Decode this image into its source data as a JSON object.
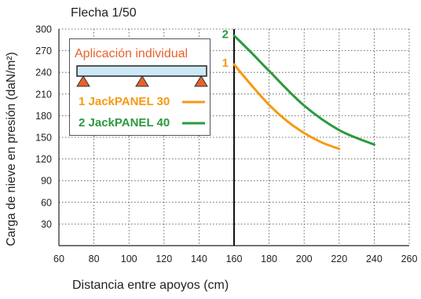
{
  "page": {
    "deflection_label": "Flecha 1/50",
    "legend_title": "Aplicación individual"
  },
  "chart_data": {
    "type": "line",
    "title": "Flecha 1/50",
    "xlabel": "Distancia entre apoyos (cm)",
    "ylabel": "Carga de nieve en presión  (daN/m²)",
    "xlim": [
      60,
      260
    ],
    "ylim": [
      0,
      300
    ],
    "xticks": [
      60,
      80,
      100,
      120,
      140,
      160,
      180,
      200,
      220,
      240,
      260
    ],
    "yticks": [
      30,
      60,
      90,
      120,
      150,
      180,
      210,
      240,
      270,
      300
    ],
    "grid": true,
    "marker_line_x": 160,
    "series": [
      {
        "name": "1 JackPANEL 30",
        "label": "1",
        "color": "#f59a12",
        "x": [
          160,
          170,
          180,
          190,
          200,
          210,
          220
        ],
        "y": [
          251,
          222,
          195,
          173,
          156,
          143,
          134
        ]
      },
      {
        "name": "2 JackPANEL 40",
        "label": "2",
        "color": "#2a9a3c",
        "x": [
          160,
          170,
          180,
          200,
          220,
          240
        ],
        "y": [
          291,
          267,
          242,
          194,
          160,
          140
        ]
      }
    ],
    "legend_position": "top-left",
    "legend_title": "Aplicación individual",
    "legend_colors": {
      "title": "#e8622a",
      "beam_fill": "#cde8f6",
      "support_fill": "#e8622a"
    }
  }
}
